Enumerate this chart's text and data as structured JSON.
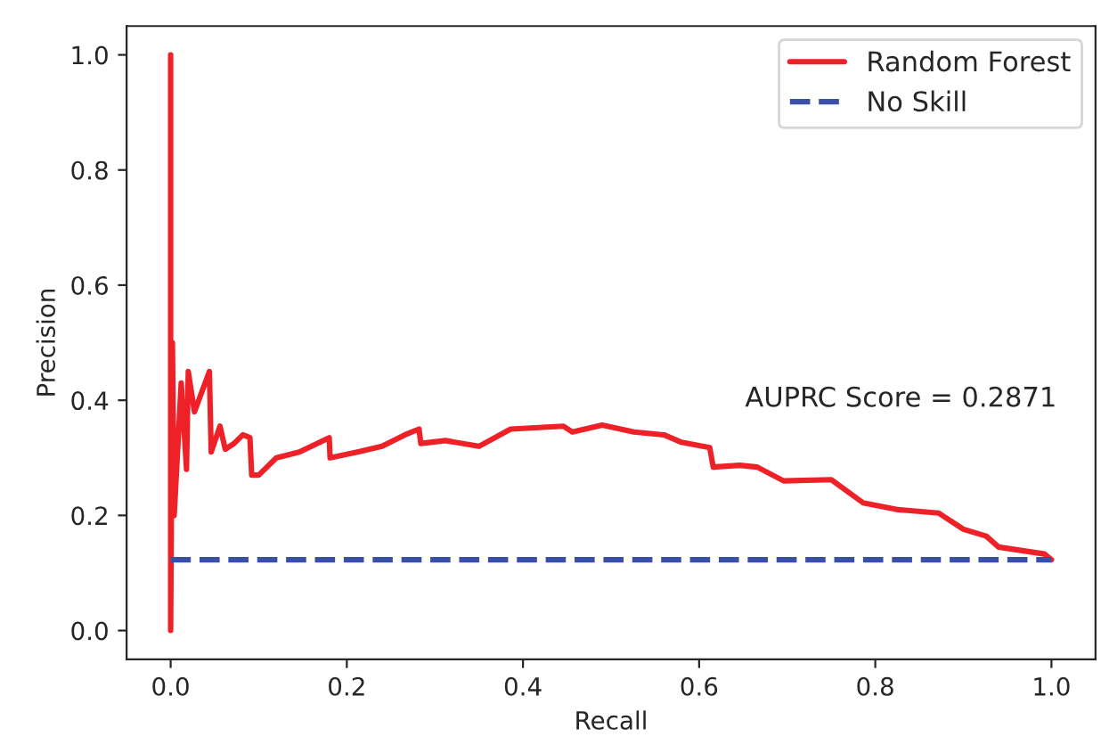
{
  "chart_data": {
    "type": "line",
    "xlabel": "Recall",
    "ylabel": "Precision",
    "xlim": [
      -0.05,
      1.05
    ],
    "ylim": [
      -0.05,
      1.05
    ],
    "xticks": [
      {
        "value": 0,
        "label": "0.0"
      },
      0.2,
      0.4,
      0.6,
      0.8,
      {
        "value": 1,
        "label": "1.0"
      }
    ],
    "yticks": [
      {
        "value": 0,
        "label": "0.0"
      },
      0.2,
      0.4,
      0.6,
      0.8,
      {
        "value": 1,
        "label": "1.0"
      }
    ],
    "grid": false,
    "legend": "top right",
    "annotations": [
      "AUPRC Score = 0.2871"
    ],
    "series": [
      {
        "name": "Random Forest",
        "color": "#ee2028",
        "line_style": "solid",
        "x": [
          0.0,
          0.0,
          0.002,
          0.004,
          0.012,
          0.018,
          0.02,
          0.027,
          0.044,
          0.046,
          0.056,
          0.062,
          0.072,
          0.082,
          0.09,
          0.092,
          0.1,
          0.12,
          0.146,
          0.18,
          0.181,
          0.212,
          0.24,
          0.266,
          0.282,
          0.284,
          0.312,
          0.35,
          0.386,
          0.446,
          0.456,
          0.49,
          0.526,
          0.56,
          0.58,
          0.612,
          0.616,
          0.646,
          0.666,
          0.696,
          0.75,
          0.786,
          0.826,
          0.872,
          0.9,
          0.926,
          0.94,
          0.992,
          1.0
        ],
        "values": [
          1.0,
          0.0,
          0.5,
          0.2,
          0.43,
          0.28,
          0.45,
          0.38,
          0.45,
          0.31,
          0.355,
          0.315,
          0.325,
          0.34,
          0.335,
          0.27,
          0.27,
          0.3,
          0.31,
          0.335,
          0.3,
          0.31,
          0.32,
          0.34,
          0.35,
          0.325,
          0.33,
          0.32,
          0.35,
          0.355,
          0.345,
          0.357,
          0.345,
          0.34,
          0.327,
          0.318,
          0.284,
          0.287,
          0.284,
          0.26,
          0.262,
          0.222,
          0.21,
          0.204,
          0.176,
          0.164,
          0.145,
          0.133,
          0.123
        ]
      },
      {
        "name": "No Skill",
        "color": "#3a50a8",
        "line_style": "dashed",
        "x": [
          0.0,
          1.0
        ],
        "values": [
          0.123,
          0.123
        ]
      }
    ]
  }
}
